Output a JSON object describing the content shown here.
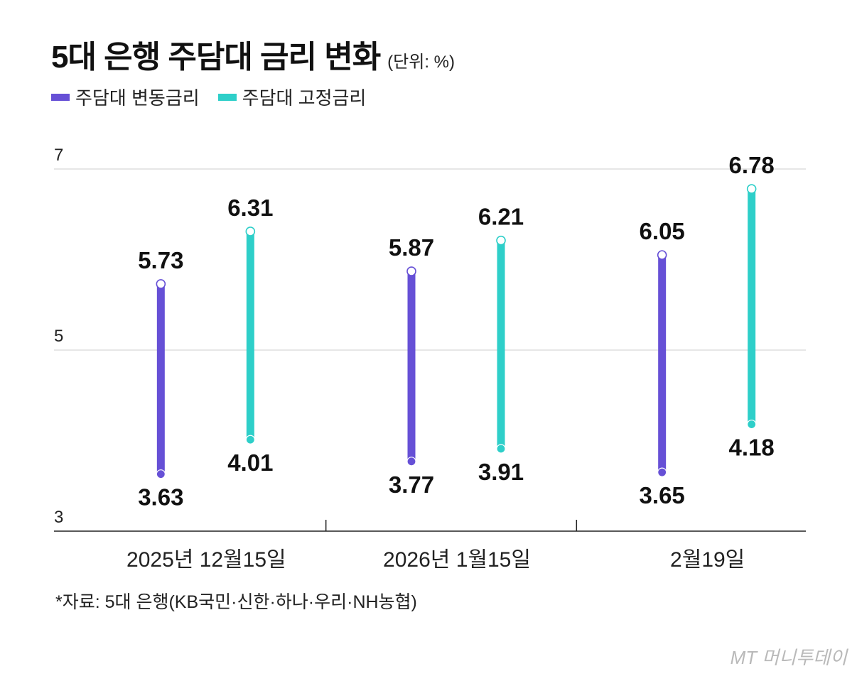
{
  "header": {
    "title": "5대 은행 주담대 금리 변화",
    "unit": "(단위: %)"
  },
  "footer": {
    "source": "*자료: 5대 은행(KB국민·신한·하나·우리·NH농협)",
    "brand": "MT 머니투데이"
  },
  "colors": {
    "variable": "#6650d6",
    "fixed": "#2ecfc9",
    "grid": "#cccccc",
    "axis": "#222222"
  },
  "chart_data": {
    "type": "range-bar",
    "categories": [
      "2025년 12월15일",
      "2026년 1월15일",
      "2월19일"
    ],
    "series": [
      {
        "name": "주담대 변동금리",
        "min": [
          3.63,
          3.77,
          3.65
        ],
        "max": [
          5.73,
          5.87,
          6.05
        ]
      },
      {
        "name": "주담대 고정금리",
        "min": [
          4.01,
          3.91,
          4.18
        ],
        "max": [
          6.31,
          6.21,
          6.78
        ]
      }
    ],
    "ylim": [
      3,
      7
    ],
    "yticks": [
      3,
      5,
      7
    ],
    "grid": true,
    "legend": "top-left"
  }
}
